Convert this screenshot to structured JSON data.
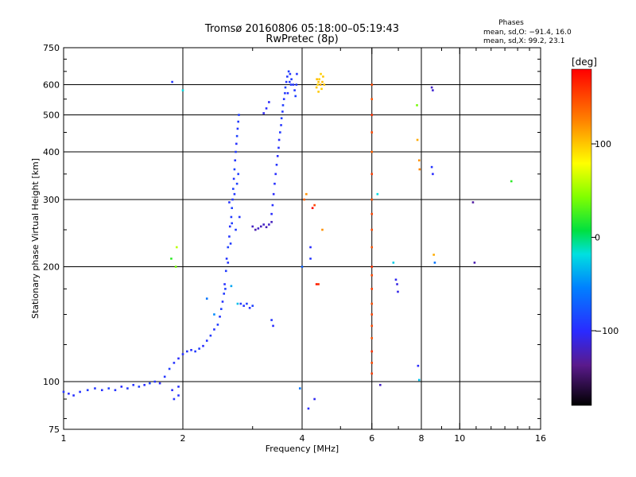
{
  "header": {
    "title": "Tromsø 20160806 05:18:00–05:19:43",
    "subtitle": "RwPretec (8p)"
  },
  "stats": {
    "heading": "Phases",
    "line_o": "mean, sd,O: −91.4, 16.0",
    "line_x": "mean, sd,X:  99.2, 23.1"
  },
  "colorbar": {
    "unit_label": "[deg]",
    "tick_values": [
      100,
      0,
      -100
    ],
    "tick_labels": [
      "100",
      "0",
      "−100"
    ],
    "range": [
      -180,
      180
    ]
  },
  "chart_data": {
    "type": "scatter",
    "title": "Tromsø 20160806 05:18:00–05:19:43",
    "subtitle": "RwPretec (8p)",
    "xlabel": "Frequency [MHz]",
    "ylabel": "Stationary phase Virtual Height [km]",
    "xscale": "log",
    "yscale": "log",
    "xlim": [
      1,
      16
    ],
    "ylim": [
      75,
      750
    ],
    "xticks": [
      1,
      2,
      4,
      6,
      8,
      10,
      16
    ],
    "xtick_labels": [
      "1",
      "2",
      "4",
      "6",
      "8",
      "10",
      "16"
    ],
    "yticks": [
      75,
      100,
      200,
      300,
      400,
      500,
      600,
      750
    ],
    "ytick_labels": [
      "75",
      "100",
      "200",
      "300",
      "400",
      "500",
      "600",
      "750"
    ],
    "grid_x": [
      2,
      4,
      6,
      8,
      10
    ],
    "grid_y": [
      100,
      200,
      300,
      400,
      500,
      600
    ],
    "color_encoding": "phase_deg",
    "series": [
      {
        "points": [
          [
            1.0,
            94,
            -95
          ],
          [
            1.03,
            93,
            -100
          ],
          [
            1.06,
            92,
            -98
          ],
          [
            1.1,
            94,
            -96
          ],
          [
            1.15,
            95,
            -92
          ],
          [
            1.2,
            96,
            -94
          ],
          [
            1.25,
            95,
            -97
          ],
          [
            1.3,
            96,
            -90
          ],
          [
            1.35,
            95,
            -95
          ],
          [
            1.4,
            97,
            -100
          ],
          [
            1.45,
            96,
            -93
          ],
          [
            1.5,
            98,
            -96
          ],
          [
            1.55,
            97,
            -91
          ],
          [
            1.6,
            98,
            -99
          ],
          [
            1.65,
            99,
            -88
          ],
          [
            1.7,
            100,
            -95
          ],
          [
            1.75,
            99,
            -102
          ],
          [
            1.8,
            103,
            -94
          ],
          [
            1.85,
            108,
            -90
          ],
          [
            1.9,
            112,
            -96
          ],
          [
            1.95,
            115,
            -100
          ],
          [
            2.0,
            118,
            -97
          ],
          [
            2.05,
            120,
            -95
          ],
          [
            2.1,
            121,
            -98
          ],
          [
            2.15,
            120,
            -92
          ],
          [
            2.2,
            122,
            -90
          ],
          [
            2.25,
            124,
            -99
          ],
          [
            2.3,
            128,
            -95
          ],
          [
            2.35,
            132,
            -93
          ],
          [
            2.4,
            137,
            -96
          ],
          [
            2.45,
            141,
            -90
          ],
          [
            2.48,
            148,
            -94
          ],
          [
            2.5,
            155,
            -88
          ],
          [
            2.52,
            162,
            -96
          ],
          [
            2.54,
            170,
            -92
          ],
          [
            2.55,
            180,
            -97
          ],
          [
            2.57,
            195,
            -91
          ],
          [
            2.58,
            210,
            -95
          ],
          [
            2.6,
            225,
            -89
          ],
          [
            2.62,
            240,
            -94
          ],
          [
            2.63,
            255,
            -98
          ],
          [
            2.65,
            270,
            -92
          ],
          [
            2.66,
            285,
            -87
          ],
          [
            2.67,
            300,
            -95
          ],
          [
            2.68,
            320,
            -90
          ],
          [
            2.69,
            340,
            -96
          ],
          [
            2.7,
            360,
            -88
          ],
          [
            2.71,
            380,
            -94
          ],
          [
            2.72,
            400,
            -91
          ],
          [
            2.73,
            420,
            -97
          ],
          [
            2.74,
            440,
            -89
          ],
          [
            2.75,
            460,
            -95
          ],
          [
            2.76,
            480,
            -92
          ],
          [
            2.77,
            500,
            -90
          ],
          [
            2.62,
            295,
            -96
          ],
          [
            2.66,
            260,
            -90
          ],
          [
            2.7,
            310,
            -93
          ],
          [
            2.74,
            330,
            -88
          ],
          [
            2.78,
            270,
            -95
          ],
          [
            2.64,
            230,
            -91
          ],
          [
            2.6,
            205,
            -94
          ],
          [
            2.56,
            175,
            -89
          ],
          [
            2.72,
            250,
            -92
          ],
          [
            2.76,
            350,
            -90
          ],
          [
            2.8,
            160,
            -92
          ],
          [
            2.85,
            158,
            -95
          ],
          [
            2.9,
            160,
            -90
          ],
          [
            2.95,
            156,
            -97
          ],
          [
            3.0,
            158,
            -88
          ],
          [
            3.0,
            255,
            -120
          ],
          [
            3.05,
            250,
            -125
          ],
          [
            3.1,
            252,
            -118
          ],
          [
            3.15,
            255,
            -122
          ],
          [
            3.2,
            258,
            -119
          ],
          [
            3.25,
            254,
            -124
          ],
          [
            3.3,
            258,
            -117
          ],
          [
            3.35,
            262,
            -121
          ],
          [
            3.35,
            275,
            -100
          ],
          [
            3.37,
            290,
            -98
          ],
          [
            3.39,
            310,
            -101
          ],
          [
            3.41,
            330,
            -97
          ],
          [
            3.43,
            350,
            -99
          ],
          [
            3.45,
            370,
            -95
          ],
          [
            3.47,
            390,
            -100
          ],
          [
            3.49,
            410,
            -96
          ],
          [
            3.5,
            430,
            -98
          ],
          [
            3.52,
            450,
            -92
          ],
          [
            3.54,
            470,
            -95
          ],
          [
            3.55,
            490,
            -90
          ],
          [
            3.57,
            510,
            -94
          ],
          [
            3.58,
            530,
            -91
          ],
          [
            3.6,
            550,
            -96
          ],
          [
            3.62,
            570,
            -93
          ],
          [
            3.63,
            590,
            -89
          ],
          [
            3.65,
            610,
            -95
          ],
          [
            3.67,
            630,
            -92
          ],
          [
            3.7,
            650,
            -90
          ],
          [
            3.73,
            640,
            -94
          ],
          [
            3.76,
            620,
            -91
          ],
          [
            3.8,
            600,
            -96
          ],
          [
            3.83,
            580,
            -93
          ],
          [
            3.85,
            560,
            -89
          ],
          [
            3.87,
            600,
            -92
          ],
          [
            3.88,
            640,
            -95
          ],
          [
            3.75,
            600,
            -90
          ],
          [
            3.68,
            570,
            -97
          ],
          [
            3.72,
            610,
            -93
          ],
          [
            3.2,
            505,
            -105
          ],
          [
            3.25,
            520,
            -100
          ],
          [
            3.3,
            540,
            -102
          ],
          [
            3.35,
            145,
            -95
          ],
          [
            3.38,
            140,
            -100
          ],
          [
            1.95,
            97,
            -98
          ],
          [
            1.95,
            92,
            -96
          ],
          [
            1.9,
            90,
            -95
          ],
          [
            1.88,
            95,
            -101
          ],
          [
            1.88,
            610,
            -95
          ],
          [
            2.0,
            580,
            -20
          ],
          [
            1.92,
            200,
            40
          ],
          [
            1.87,
            210,
            20
          ],
          [
            1.93,
            225,
            60
          ],
          [
            2.3,
            165,
            -60
          ],
          [
            2.4,
            150,
            -50
          ],
          [
            2.65,
            178,
            -40
          ],
          [
            2.75,
            160,
            -30
          ],
          [
            4.05,
            300,
            140
          ],
          [
            4.1,
            310,
            120
          ],
          [
            4.25,
            285,
            180
          ],
          [
            4.3,
            290,
            150
          ],
          [
            4.2,
            225,
            -100
          ],
          [
            4.2,
            210,
            -95
          ],
          [
            4.15,
            85,
            -100
          ],
          [
            4.3,
            90,
            -105
          ],
          [
            4.35,
            180,
            170
          ],
          [
            4.4,
            180,
            160
          ],
          [
            4.5,
            250,
            120
          ],
          [
            4.0,
            200,
            -70
          ],
          [
            3.95,
            96,
            -60
          ],
          [
            4.35,
            590,
            100
          ],
          [
            4.38,
            600,
            95
          ],
          [
            4.4,
            610,
            102
          ],
          [
            4.42,
            620,
            98
          ],
          [
            4.45,
            600,
            110
          ],
          [
            4.48,
            585,
            96
          ],
          [
            4.5,
            610,
            104
          ],
          [
            4.52,
            630,
            100
          ],
          [
            4.4,
            575,
            99
          ],
          [
            4.46,
            640,
            97
          ],
          [
            4.36,
            620,
            103
          ],
          [
            4.55,
            600,
            101
          ],
          [
            6.0,
            600,
            150
          ],
          [
            6.0,
            550,
            145
          ],
          [
            6.0,
            500,
            160
          ],
          [
            6.0,
            450,
            150
          ],
          [
            6.0,
            400,
            140
          ],
          [
            6.0,
            350,
            155
          ],
          [
            6.0,
            300,
            148
          ],
          [
            6.0,
            275,
            152
          ],
          [
            6.0,
            250,
            150
          ],
          [
            6.0,
            225,
            145
          ],
          [
            6.0,
            200,
            160
          ],
          [
            6.0,
            190,
            150
          ],
          [
            6.0,
            175,
            155
          ],
          [
            6.0,
            160,
            148
          ],
          [
            6.0,
            150,
            152
          ],
          [
            6.0,
            140,
            150
          ],
          [
            6.0,
            130,
            145
          ],
          [
            6.0,
            120,
            160
          ],
          [
            6.0,
            112,
            150
          ],
          [
            6.0,
            105,
            155
          ],
          [
            6.3,
            98,
            -120
          ],
          [
            6.2,
            310,
            -20
          ],
          [
            6.8,
            205,
            -25
          ],
          [
            6.9,
            185,
            -105
          ],
          [
            6.95,
            180,
            -110
          ],
          [
            6.98,
            172,
            -108
          ],
          [
            7.8,
            530,
            40
          ],
          [
            7.82,
            430,
            110
          ],
          [
            7.9,
            380,
            120
          ],
          [
            7.92,
            360,
            125
          ],
          [
            7.85,
            110,
            -100
          ],
          [
            7.9,
            101,
            -30
          ],
          [
            8.5,
            590,
            -120
          ],
          [
            8.55,
            580,
            -115
          ],
          [
            8.5,
            365,
            -95
          ],
          [
            8.55,
            350,
            -100
          ],
          [
            8.6,
            215,
            110
          ],
          [
            8.65,
            205,
            -60
          ],
          [
            10.8,
            295,
            -130
          ],
          [
            10.9,
            205,
            -125
          ],
          [
            13.5,
            335,
            20
          ]
        ]
      }
    ]
  }
}
